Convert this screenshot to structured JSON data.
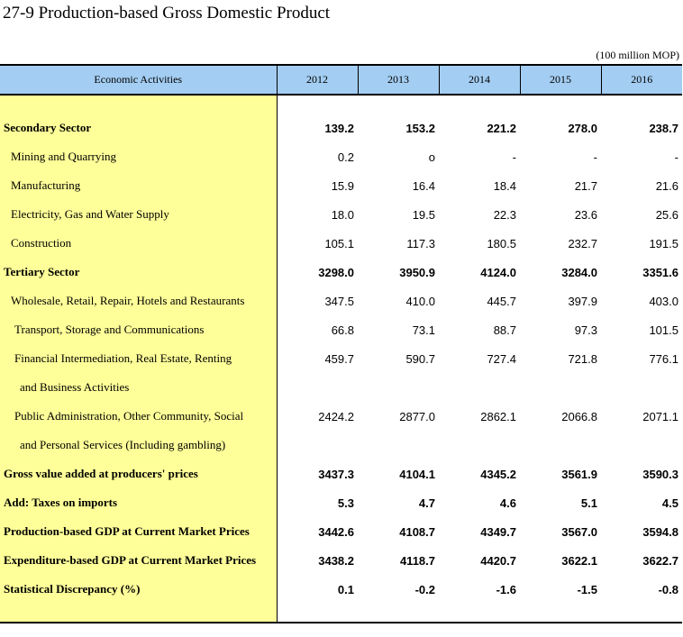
{
  "title": "27-9  Production-based Gross Domestic Product",
  "unit": "(100 million MOP)",
  "header": {
    "label": "Economic Activities",
    "years": [
      "2012",
      "2013",
      "2014",
      "2015",
      "2016"
    ]
  },
  "rows": [
    {
      "label": "Secondary Sector",
      "values": [
        "139.2",
        "153.2",
        "221.2",
        "278.0",
        "238.7"
      ]
    },
    {
      "label": "Mining and Quarrying",
      "values": [
        "0.2",
        "o",
        "-",
        "-",
        "-"
      ]
    },
    {
      "label": "Manufacturing",
      "values": [
        "15.9",
        "16.4",
        "18.4",
        "21.7",
        "21.6"
      ]
    },
    {
      "label": "Electricity, Gas and Water Supply",
      "values": [
        "18.0",
        "19.5",
        "22.3",
        "23.6",
        "25.6"
      ]
    },
    {
      "label": "Construction",
      "values": [
        "105.1",
        "117.3",
        "180.5",
        "232.7",
        "191.5"
      ]
    },
    {
      "label": "Tertiary Sector",
      "values": [
        "3298.0",
        "3950.9",
        "4124.0",
        "3284.0",
        "3351.6"
      ]
    },
    {
      "label": "Wholesale, Retail, Repair, Hotels and Restaurants",
      "values": [
        "347.5",
        "410.0",
        "445.7",
        "397.9",
        "403.0"
      ]
    },
    {
      "label": "Transport, Storage and Communications",
      "values": [
        "66.8",
        "73.1",
        "88.7",
        "97.3",
        "101.5"
      ]
    },
    {
      "label": "Financial Intermediation, Real Estate, Renting",
      "values": [
        "459.7",
        "590.7",
        "727.4",
        "721.8",
        "776.1"
      ]
    },
    {
      "label": "and Business Activities"
    },
    {
      "label": "Public Administration, Other Community, Social",
      "values": [
        "2424.2",
        "2877.0",
        "2862.1",
        "2066.8",
        "2071.1"
      ]
    },
    {
      "label": "and Personal Services (Including gambling)"
    },
    {
      "label": "Gross value added at producers' prices",
      "values": [
        "3437.3",
        "4104.1",
        "4345.2",
        "3561.9",
        "3590.3"
      ]
    },
    {
      "label": "Add: Taxes on imports",
      "values": [
        "5.3",
        "4.7",
        "4.6",
        "5.1",
        "4.5"
      ]
    },
    {
      "label": "Production-based GDP at Current Market Prices",
      "values": [
        "3442.6",
        "4108.7",
        "4349.7",
        "3567.0",
        "3594.8"
      ]
    },
    {
      "label": "Expenditure-based GDP at Current Market Prices",
      "values": [
        "3438.2",
        "4118.7",
        "4420.7",
        "3622.1",
        "3622.7"
      ]
    },
    {
      "label": "Statistical Discrepancy (%)",
      "values": [
        "0.1",
        "-0.2",
        "-1.6",
        "-1.5",
        "-0.8"
      ]
    }
  ]
}
